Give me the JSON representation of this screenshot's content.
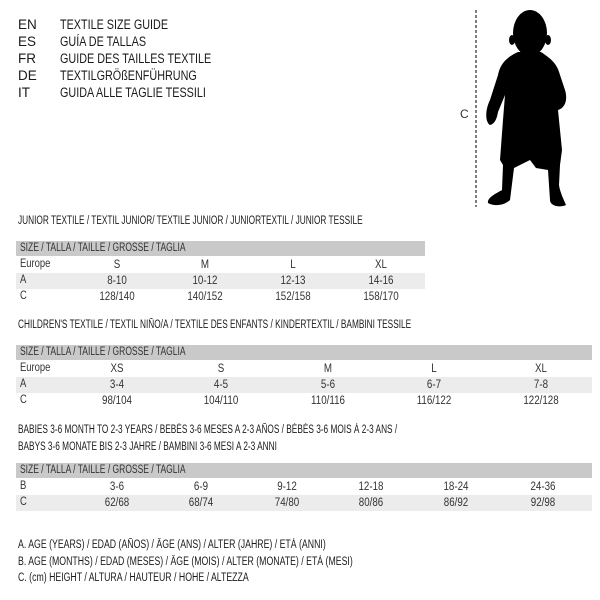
{
  "languages": [
    {
      "code": "EN",
      "text": "TEXTILE SIZE GUIDE"
    },
    {
      "code": "ES",
      "text": "GUÍA DE TALLAS"
    },
    {
      "code": "FR",
      "text": "GUIDE DES TAILLES TEXTILE"
    },
    {
      "code": "DE",
      "text": "TEXTILGRÖßENFÜHRUNG"
    },
    {
      "code": "IT",
      "text": "GUIDA ALLE TAGLIE TESSILI"
    }
  ],
  "figure": {
    "height_label": "C"
  },
  "size_header": "SIZE / TALLA / TAILLE / GRÖSSE / TAGLIA",
  "junior": {
    "title": "JUNIOR TEXTILE / TEXTIL JUNIOR/ TEXTILE JUNIOR / JUNIORTEXTIL / JUNIOR TESSILE",
    "rows": [
      {
        "label": "Europe",
        "cells": [
          "S",
          "M",
          "L",
          "XL"
        ]
      },
      {
        "label": "A",
        "cells": [
          "8-10",
          "10-12",
          "12-13",
          "14-16"
        ]
      },
      {
        "label": "C",
        "cells": [
          "128/140",
          "140/152",
          "152/158",
          "158/170"
        ]
      }
    ]
  },
  "children": {
    "title": "CHILDREN'S TEXTILE / TEXTIL NIÑO/A / TEXTILE DES ENFANTS / KINDERTEXTIL / BAMBINI TESSILE",
    "rows": [
      {
        "label": "Europe",
        "cells": [
          "XS",
          "S",
          "M",
          "L",
          "XL"
        ]
      },
      {
        "label": "A",
        "cells": [
          "3-4",
          "4-5",
          "5-6",
          "6-7",
          "7-8"
        ]
      },
      {
        "label": "C",
        "cells": [
          "98/104",
          "104/110",
          "110/116",
          "116/122",
          "122/128"
        ]
      }
    ]
  },
  "babies": {
    "title_line1": "BABIES 3-6 MONTH TO 2-3 YEARS / BEBÉS 3-6 MESES A 2-3 AÑOS / BÉBÉS 3-6 MOIS À 2-3 ANS /",
    "title_line2": "BABYS 3-6 MONATE BIS 2-3 JAHRE / BAMBINI 3-6 MESI A 2-3 ANNI",
    "rows": [
      {
        "label": "B",
        "cells": [
          "3-6",
          "6-9",
          "9-12",
          "12-18",
          "18-24",
          "24-36"
        ]
      },
      {
        "label": "C",
        "cells": [
          "62/68",
          "68/74",
          "74/80",
          "80/86",
          "86/92",
          "92/98"
        ]
      }
    ]
  },
  "legend": [
    "A. AGE (YEARS) / EDAD (AÑOS) / ÂGE (ANS) / ALTER (JAHRE) / ETÀ (ANNI)",
    "B. AGE (MONTHS) / EDAD (MESES) / ÂGE (MOIS) / ALTER (MONATE) / ETÀ (MESI)",
    "C. (cm) HEIGHT / ALTURA / HAUTEUR / HÖHE / ALTEZZA"
  ]
}
